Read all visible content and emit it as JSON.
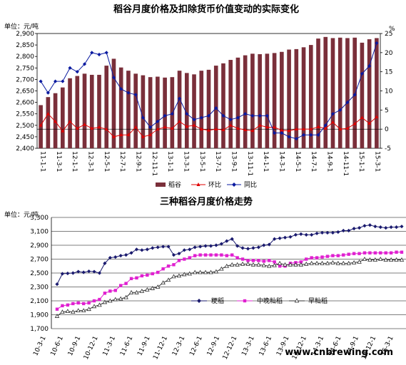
{
  "watermark": "www.cnbrewing.com",
  "chart_data": [
    {
      "type": "bar+line",
      "title": "稻谷月度价格及扣除货币价值变动的实际变化",
      "left_unit": "单位：元/吨",
      "right_unit": "%",
      "ylim_left": [
        2400,
        2900
      ],
      "left_ticks": [
        "2,400",
        "2,450",
        "2,500",
        "2,550",
        "2,600",
        "2,650",
        "2,700",
        "2,750",
        "2,800",
        "2,850",
        "2,900"
      ],
      "ylim_right": [
        -5,
        25
      ],
      "right_ticks": [
        "-5",
        "0",
        "5",
        "10",
        "15",
        "20",
        "25"
      ],
      "x_tick_labels": [
        "11-1-1",
        "11-3-1",
        "12-1-1",
        "12-3-1",
        "12-5-1",
        "12-7-1",
        "12-9-1",
        "12-11-1",
        "13-1-1",
        "13-3-1",
        "13-5-1",
        "13-7-1",
        "13-9-1",
        "13-11-1",
        "14-1-1",
        "14-3-1",
        "14-5-1",
        "14-7-1",
        "14-9-1",
        "14-11-1",
        "15-1-1",
        "15-3-1"
      ],
      "legend": [
        "稻谷",
        "环比",
        "同比"
      ],
      "colors": {
        "bars": "#7a2f3a",
        "mom": "#e00000",
        "yoy": "#0a1aa0"
      },
      "series": [
        {
          "name": "稻谷",
          "kind": "bar",
          "values": [
            2588,
            2623,
            2640,
            2665,
            2705,
            2715,
            2725,
            2720,
            2720,
            2760,
            2790,
            2752,
            2738,
            2725,
            2718,
            2710,
            2712,
            2708,
            2710,
            2738,
            2728,
            2722,
            2738,
            2742,
            2760,
            2770,
            2785,
            2795,
            2805,
            2812,
            2810,
            2812,
            2815,
            2820,
            2830,
            2832,
            2840,
            2850,
            2878,
            2885,
            2880,
            2882,
            2880,
            2882,
            2860,
            2875,
            2880
          ]
        },
        {
          "name": "环比",
          "kind": "line",
          "values": [
            1,
            4,
            2,
            -0.5,
            2,
            0.2,
            1.2,
            0.2,
            0.5,
            0,
            -2,
            -1.5,
            -1.5,
            0.5,
            -2,
            -1.5,
            0,
            0.5,
            0.2,
            2,
            0.7,
            1,
            0,
            -0.3,
            0,
            -0.2,
            1,
            0.2,
            -0.2,
            -0.4,
            1,
            0.5,
            0.5,
            -0.3,
            -0.4,
            0,
            0,
            0,
            0.6,
            0.2,
            1.8,
            0,
            0.2,
            1.4,
            3,
            1.5,
            3.2
          ]
        },
        {
          "name": "同比",
          "kind": "line",
          "values": [
            12.5,
            9.5,
            12.5,
            12.5,
            16,
            15,
            17,
            20,
            19.5,
            20,
            13.5,
            10.5,
            9.5,
            9,
            3,
            0.5,
            2,
            3.5,
            4,
            8,
            4,
            2.5,
            3,
            3.5,
            5.5,
            3.5,
            2.5,
            3,
            4,
            3.5,
            3.5,
            3.5,
            -1,
            -1,
            -2,
            -2.5,
            -1.5,
            -1.5,
            -1.5,
            1,
            4,
            5,
            7,
            9,
            14.5,
            16.5,
            22.5
          ]
        }
      ]
    },
    {
      "type": "line",
      "title": "三种稻谷月度价格走势",
      "unit": "单位：元/吨",
      "ylim": [
        1700,
        3300
      ],
      "y_ticks": [
        "1,700",
        "1,900",
        "2,100",
        "2,300",
        "2,500",
        "2,700",
        "2,900",
        "3,100",
        "3,300"
      ],
      "x_tick_labels": [
        "10-3-1",
        "10-6-1",
        "10-9-1",
        "10-12-1",
        "11-3-1",
        "11-6-1",
        "11-9-1",
        "11-12-1",
        "12-3-1",
        "12-6-1",
        "12-9-1",
        "12-12-1",
        "13-3-1",
        "13-6-1",
        "13-9-1",
        "13-12-1",
        "14-3-1",
        "14-6-1",
        "14-9-1",
        "14-12-1",
        "15-3-1"
      ],
      "legend": [
        "粳稻",
        "中晚籼稻",
        "早籼稻"
      ],
      "colors": {
        "japonica": "#1a1a6e",
        "mid": "#e020d0",
        "early": "#303030"
      },
      "series": [
        {
          "name": "粳稻",
          "values": [
            2340,
            2490,
            2495,
            2500,
            2520,
            2510,
            2525,
            2520,
            2500,
            2640,
            2720,
            2730,
            2750,
            2760,
            2790,
            2840,
            2830,
            2840,
            2860,
            2870,
            2880,
            2880,
            2760,
            2780,
            2830,
            2840,
            2870,
            2880,
            2890,
            2890,
            2900,
            2920,
            2960,
            2990,
            2890,
            2860,
            2850,
            2860,
            2870,
            2900,
            2910,
            2990,
            3000,
            3010,
            3020,
            3050,
            3060,
            3050,
            3050,
            3070,
            3080,
            3080,
            3080,
            3090,
            3110,
            3110,
            3140,
            3150,
            3180,
            3190,
            3170,
            3160,
            3150,
            3160,
            3160,
            3170
          ]
        },
        {
          "name": "中晚籼稻",
          "values": [
            1980,
            2030,
            2040,
            2060,
            2070,
            2060,
            2070,
            2100,
            2120,
            2210,
            2240,
            2250,
            2320,
            2350,
            2420,
            2430,
            2460,
            2470,
            2490,
            2510,
            2560,
            2600,
            2620,
            2680,
            2700,
            2720,
            2750,
            2760,
            2760,
            2760,
            2760,
            2760,
            2750,
            2760,
            2720,
            2700,
            2680,
            2680,
            2680,
            2670,
            2680,
            2660,
            2600,
            2600,
            2640,
            2650,
            2660,
            2700,
            2720,
            2720,
            2730,
            2740,
            2750,
            2750,
            2760,
            2770,
            2780,
            2780,
            2790,
            2790,
            2790,
            2790,
            2790,
            2790,
            2800,
            2800
          ]
        },
        {
          "name": "早籼稻",
          "values": [
            1880,
            1940,
            1950,
            1940,
            1960,
            1960,
            1980,
            2020,
            2040,
            2080,
            2100,
            2120,
            2130,
            2150,
            2220,
            2220,
            2240,
            2260,
            2280,
            2300,
            2360,
            2400,
            2450,
            2460,
            2480,
            2490,
            2510,
            2510,
            2510,
            2510,
            2520,
            2560,
            2600,
            2620,
            2620,
            2630,
            2630,
            2620,
            2620,
            2610,
            2600,
            2610,
            2640,
            2620,
            2620,
            2620,
            2620,
            2630,
            2640,
            2640,
            2640,
            2640,
            2650,
            2640,
            2640,
            2640,
            2650,
            2660,
            2700,
            2690,
            2690,
            2700,
            2690,
            2690,
            2690,
            2690
          ]
        }
      ]
    }
  ]
}
